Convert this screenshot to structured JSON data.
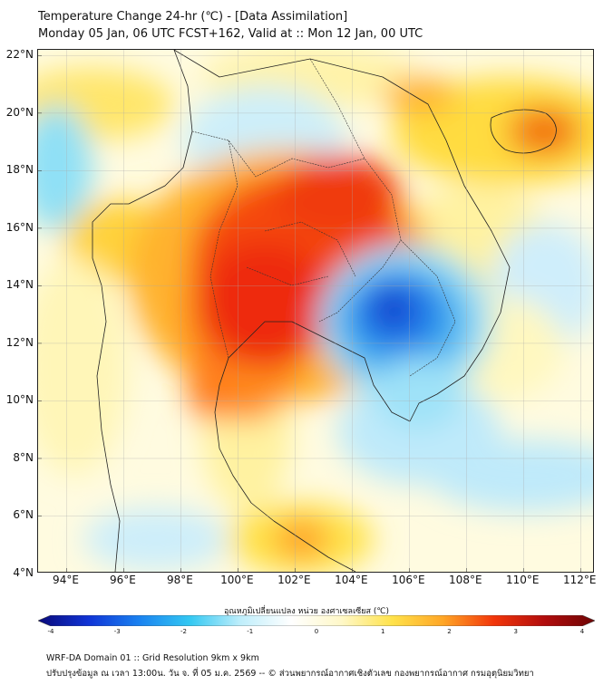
{
  "title": {
    "line1": "Temperature Change 24-hr (℃) - [Data Assimilation]",
    "line2": "Monday 05 Jan, 06 UTC FCST+162, Valid at :: Mon 12 Jan, 00 UTC"
  },
  "map": {
    "lon_range": [
      93,
      112.5
    ],
    "lat_range": [
      4,
      22.2
    ],
    "lat_labels": [
      "22°N",
      "20°N",
      "18°N",
      "16°N",
      "14°N",
      "12°N",
      "10°N",
      "8°N",
      "6°N",
      "4°N"
    ],
    "lat_values": [
      22,
      20,
      18,
      16,
      14,
      12,
      10,
      8,
      6,
      4
    ],
    "lon_labels": [
      "94°E",
      "96°E",
      "98°E",
      "100°E",
      "102°E",
      "104°E",
      "106°E",
      "108°E",
      "110°E",
      "112°E"
    ],
    "lon_values": [
      94,
      96,
      98,
      100,
      102,
      104,
      106,
      108,
      110,
      112
    ]
  },
  "colorbar": {
    "label": "อุณหภูมิเปลี่ยนแปลง หน่วย องศาเซลเซียส (℃)",
    "min": -4,
    "max": 4,
    "ticks": [
      "-4",
      "-3",
      "-2",
      "-1",
      "0",
      "1",
      "2",
      "3",
      "4"
    ],
    "tick_values": [
      -4,
      -3,
      -2,
      -1,
      0,
      1,
      2,
      3,
      4
    ],
    "colors": [
      "#0a0a7a",
      "#1034d6",
      "#1a82f0",
      "#33c8f2",
      "#bfeefb",
      "#ffffff",
      "#fff8c8",
      "#ffe24a",
      "#ffa626",
      "#f2360a",
      "#b20d0d",
      "#6e0505"
    ]
  },
  "footer": {
    "line1": "WRF-DA Domain 01 :: Grid Resolution 9km x 9km",
    "line2": "ปรับปรุงข้อมูล ณ เวลา 13:00น. วัน จ. ที่ 05 ม.ค. 2569 -- © ส่วนพยากรณ์อากาศเชิงตัวเลข กองพยากรณ์อากาศ กรมอุตุนิยมวิทยา"
  }
}
